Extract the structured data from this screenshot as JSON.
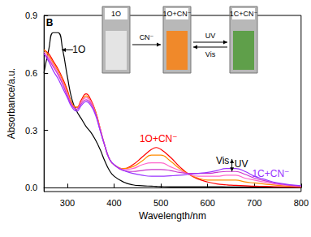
{
  "chart_data": {
    "type": "line",
    "x_label": "Wavelength/nm",
    "y_label": "Absorbance/a.u.",
    "xlim": [
      250,
      800
    ],
    "xticks": [
      300,
      400,
      500,
      600,
      700,
      800
    ],
    "ylim": [
      -0.02,
      0.9
    ],
    "yticks": [
      {
        "value": 0,
        "label": "0.0"
      },
      0.3,
      0.6,
      0.9
    ],
    "grid": false,
    "x": [
      250,
      260,
      270,
      280,
      290,
      300,
      310,
      320,
      330,
      340,
      350,
      360,
      370,
      380,
      390,
      400,
      420,
      440,
      460,
      480,
      490,
      500,
      520,
      540,
      560,
      580,
      600,
      620,
      640,
      650,
      660,
      680,
      700,
      720,
      750,
      800
    ],
    "series": [
      {
        "color": "#000000",
        "values": [
          0.6,
          0.72,
          0.81,
          0.81,
          0.72,
          0.58,
          0.46,
          0.4,
          0.36,
          0.32,
          0.29,
          0.25,
          0.2,
          0.14,
          0.09,
          0.06,
          0.03,
          0.015,
          0.01,
          0.008,
          0.007,
          0.006,
          0.005,
          0.005,
          0.005,
          0.005,
          0.005,
          0.005,
          0.004,
          0.004,
          0.004,
          0.004,
          0.004,
          0.004,
          0.003,
          0.003
        ]
      },
      {
        "color": "#ff0000",
        "values": [
          0.72,
          0.7,
          0.66,
          0.62,
          0.57,
          0.51,
          0.44,
          0.42,
          0.46,
          0.49,
          0.46,
          0.4,
          0.31,
          0.22,
          0.15,
          0.12,
          0.1,
          0.12,
          0.16,
          0.2,
          0.21,
          0.2,
          0.16,
          0.11,
          0.07,
          0.045,
          0.03,
          0.02,
          0.015,
          0.013,
          0.012,
          0.01,
          0.008,
          0.007,
          0.005,
          0.003
        ]
      },
      {
        "color": "#ff8c00",
        "values": [
          0.72,
          0.69,
          0.65,
          0.61,
          0.56,
          0.5,
          0.44,
          0.42,
          0.45,
          0.48,
          0.45,
          0.4,
          0.31,
          0.22,
          0.15,
          0.12,
          0.1,
          0.11,
          0.14,
          0.17,
          0.17,
          0.17,
          0.14,
          0.1,
          0.07,
          0.05,
          0.04,
          0.04,
          0.04,
          0.04,
          0.04,
          0.03,
          0.025,
          0.02,
          0.012,
          0.005
        ]
      },
      {
        "color": "#ff66cc",
        "values": [
          0.71,
          0.68,
          0.64,
          0.6,
          0.55,
          0.49,
          0.43,
          0.41,
          0.45,
          0.47,
          0.45,
          0.39,
          0.31,
          0.22,
          0.15,
          0.12,
          0.095,
          0.1,
          0.12,
          0.13,
          0.13,
          0.13,
          0.11,
          0.09,
          0.07,
          0.06,
          0.06,
          0.06,
          0.065,
          0.065,
          0.065,
          0.05,
          0.04,
          0.03,
          0.018,
          0.007
        ]
      },
      {
        "color": "#cc33cc",
        "values": [
          0.7,
          0.67,
          0.63,
          0.59,
          0.54,
          0.48,
          0.43,
          0.41,
          0.44,
          0.46,
          0.44,
          0.39,
          0.3,
          0.22,
          0.15,
          0.12,
          0.09,
          0.085,
          0.09,
          0.095,
          0.095,
          0.095,
          0.09,
          0.08,
          0.075,
          0.075,
          0.075,
          0.08,
          0.085,
          0.085,
          0.085,
          0.07,
          0.05,
          0.038,
          0.022,
          0.008
        ]
      },
      {
        "color": "#9933ff",
        "values": [
          0.7,
          0.66,
          0.61,
          0.57,
          0.52,
          0.47,
          0.42,
          0.4,
          0.43,
          0.45,
          0.43,
          0.38,
          0.3,
          0.22,
          0.15,
          0.12,
          0.09,
          0.075,
          0.065,
          0.06,
          0.06,
          0.06,
          0.062,
          0.065,
          0.07,
          0.075,
          0.08,
          0.09,
          0.1,
          0.1,
          0.1,
          0.085,
          0.06,
          0.045,
          0.025,
          0.01
        ]
      }
    ],
    "annotations": [
      {
        "text": "B",
        "x": 262,
        "y": 0.86,
        "color": "#000000"
      },
      {
        "text": "1O",
        "x": 325,
        "y": 0.72,
        "color": "#000000",
        "arrow": [
          312,
          0.72,
          288,
          0.72
        ]
      },
      {
        "text": "1O+CN⁻",
        "x": 495,
        "y": 0.255,
        "color": "#ff0000"
      },
      {
        "text": "1C+CN⁻",
        "x": 735,
        "y": 0.075,
        "color": "#9933ff"
      },
      {
        "text": "Vis",
        "x": 632,
        "y": 0.14,
        "color": "#000000",
        "arrow": [
          652,
          0.085,
          652,
          0.15
        ]
      },
      {
        "text": "UV",
        "x": 672,
        "y": 0.125,
        "color": "#000000"
      }
    ],
    "inset": {
      "cuvettes": [
        "1O",
        "1O+CN⁻",
        "1C+CN⁻"
      ],
      "arrows": [
        {
          "above": "CN⁻"
        },
        {
          "above": "UV",
          "below": "Vis"
        }
      ]
    }
  }
}
